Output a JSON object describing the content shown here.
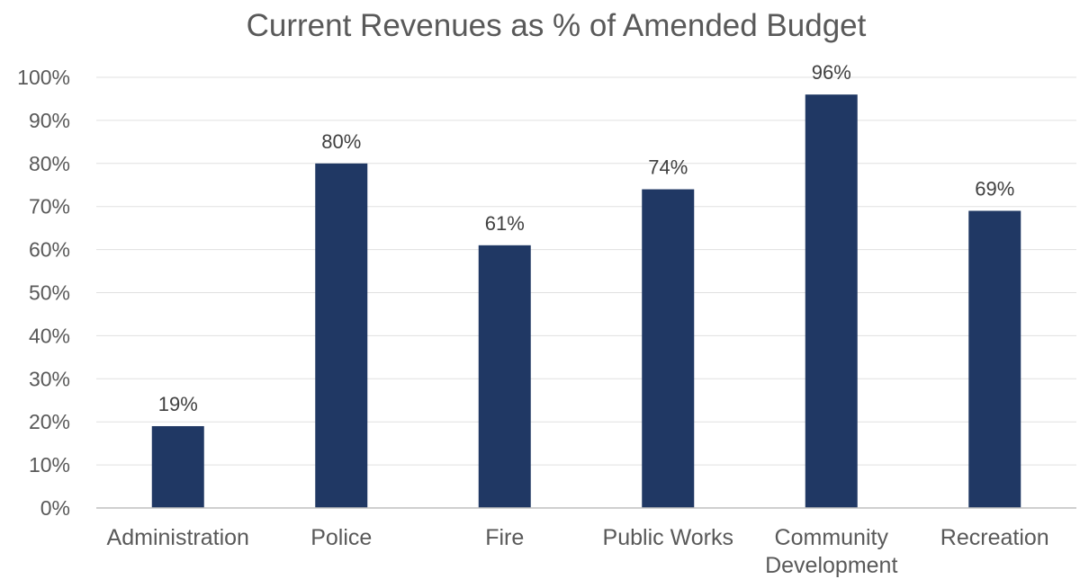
{
  "chart_data": {
    "type": "bar",
    "title": "Current Revenues as % of Amended Budget",
    "xlabel": "",
    "ylabel": "",
    "categories": [
      [
        "Administration"
      ],
      [
        "Police"
      ],
      [
        "Fire"
      ],
      [
        "Public Works"
      ],
      [
        "Community",
        "Development"
      ],
      [
        "Recreation"
      ]
    ],
    "values": [
      19,
      80,
      61,
      74,
      96,
      69
    ],
    "data_labels": [
      "19%",
      "80%",
      "61%",
      "74%",
      "96%",
      "69%"
    ],
    "ylim": [
      0,
      100
    ],
    "yticks": [
      "0%",
      "10%",
      "20%",
      "30%",
      "40%",
      "50%",
      "60%",
      "70%",
      "80%",
      "90%",
      "100%"
    ],
    "grid": true,
    "legend": "none",
    "bar_color": "#203864"
  }
}
